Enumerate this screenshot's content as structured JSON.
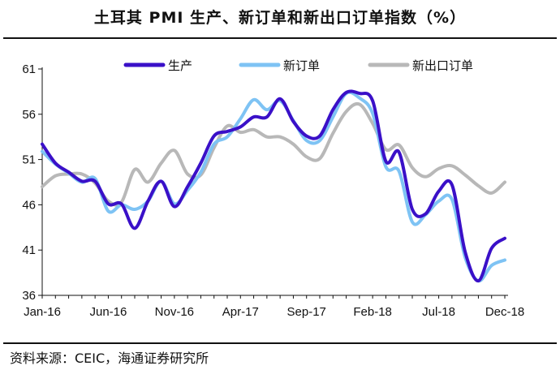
{
  "title": "土耳其 PMI 生产、新订单和新出口订单指数（%）",
  "source": "资料来源：CEIC，海通证券研究所",
  "chart_data": {
    "type": "line",
    "title": "土耳其 PMI 生产、新订单和新出口订单指数（%）",
    "xlabel": "",
    "ylabel": "",
    "x": [
      "Jan-16",
      "Feb-16",
      "Mar-16",
      "Apr-16",
      "May-16",
      "Jun-16",
      "Jul-16",
      "Aug-16",
      "Sep-16",
      "Oct-16",
      "Nov-16",
      "Dec-16",
      "Jan-17",
      "Feb-17",
      "Mar-17",
      "Apr-17",
      "May-17",
      "Jun-17",
      "Jul-17",
      "Aug-17",
      "Sep-17",
      "Oct-17",
      "Nov-17",
      "Dec-17",
      "Jan-18",
      "Feb-18",
      "Mar-18",
      "Apr-18",
      "May-18",
      "Jun-18",
      "Jul-18",
      "Aug-18",
      "Sep-18",
      "Oct-18",
      "Nov-18",
      "Dec-18"
    ],
    "x_tick_labels": [
      "Jan-16",
      "Jun-16",
      "Nov-16",
      "Apr-17",
      "Sep-17",
      "Feb-18",
      "Jul-18",
      "Dec-18"
    ],
    "ylim": [
      36,
      61
    ],
    "y_ticks": [
      36,
      41,
      46,
      51,
      56,
      61
    ],
    "legend_position": "top",
    "series": [
      {
        "name": "生产",
        "color": "#3a10c8",
        "values": [
          52.7,
          50.6,
          49.6,
          48.6,
          48.6,
          46.1,
          46.1,
          43.4,
          46.4,
          48.6,
          45.8,
          48.0,
          50.6,
          53.6,
          54.1,
          54.6,
          55.7,
          55.7,
          57.7,
          55.2,
          53.6,
          53.6,
          56.5,
          58.4,
          58.3,
          57.5,
          50.8,
          51.8,
          45.5,
          45.0,
          47.5,
          48.2,
          40.8,
          37.6,
          41.2,
          42.3
        ]
      },
      {
        "name": "新订单",
        "color": "#7ec3f4",
        "values": [
          51.9,
          50.5,
          49.5,
          48.5,
          48.9,
          45.3,
          46.0,
          45.5,
          46.4,
          48.6,
          46.1,
          47.6,
          49.6,
          52.7,
          53.5,
          55.5,
          57.6,
          56.5,
          57.5,
          55.3,
          53.1,
          53.1,
          55.7,
          58.3,
          57.8,
          56.1,
          50.2,
          49.7,
          44.1,
          44.9,
          46.4,
          46.6,
          40.2,
          37.6,
          39.3,
          39.9
        ]
      },
      {
        "name": "新出口订单",
        "color": "#b8b8b8",
        "values": [
          48.0,
          49.2,
          49.4,
          49.4,
          48.4,
          46.4,
          46.3,
          49.9,
          48.5,
          50.6,
          52.0,
          49.4,
          49.3,
          52.3,
          54.7,
          54.0,
          54.3,
          53.5,
          53.5,
          52.7,
          51.3,
          51.1,
          53.9,
          56.3,
          57.1,
          55.0,
          52.1,
          52.6,
          50.1,
          49.1,
          50.0,
          50.3,
          49.3,
          48.1,
          47.3,
          48.5
        ]
      }
    ]
  }
}
